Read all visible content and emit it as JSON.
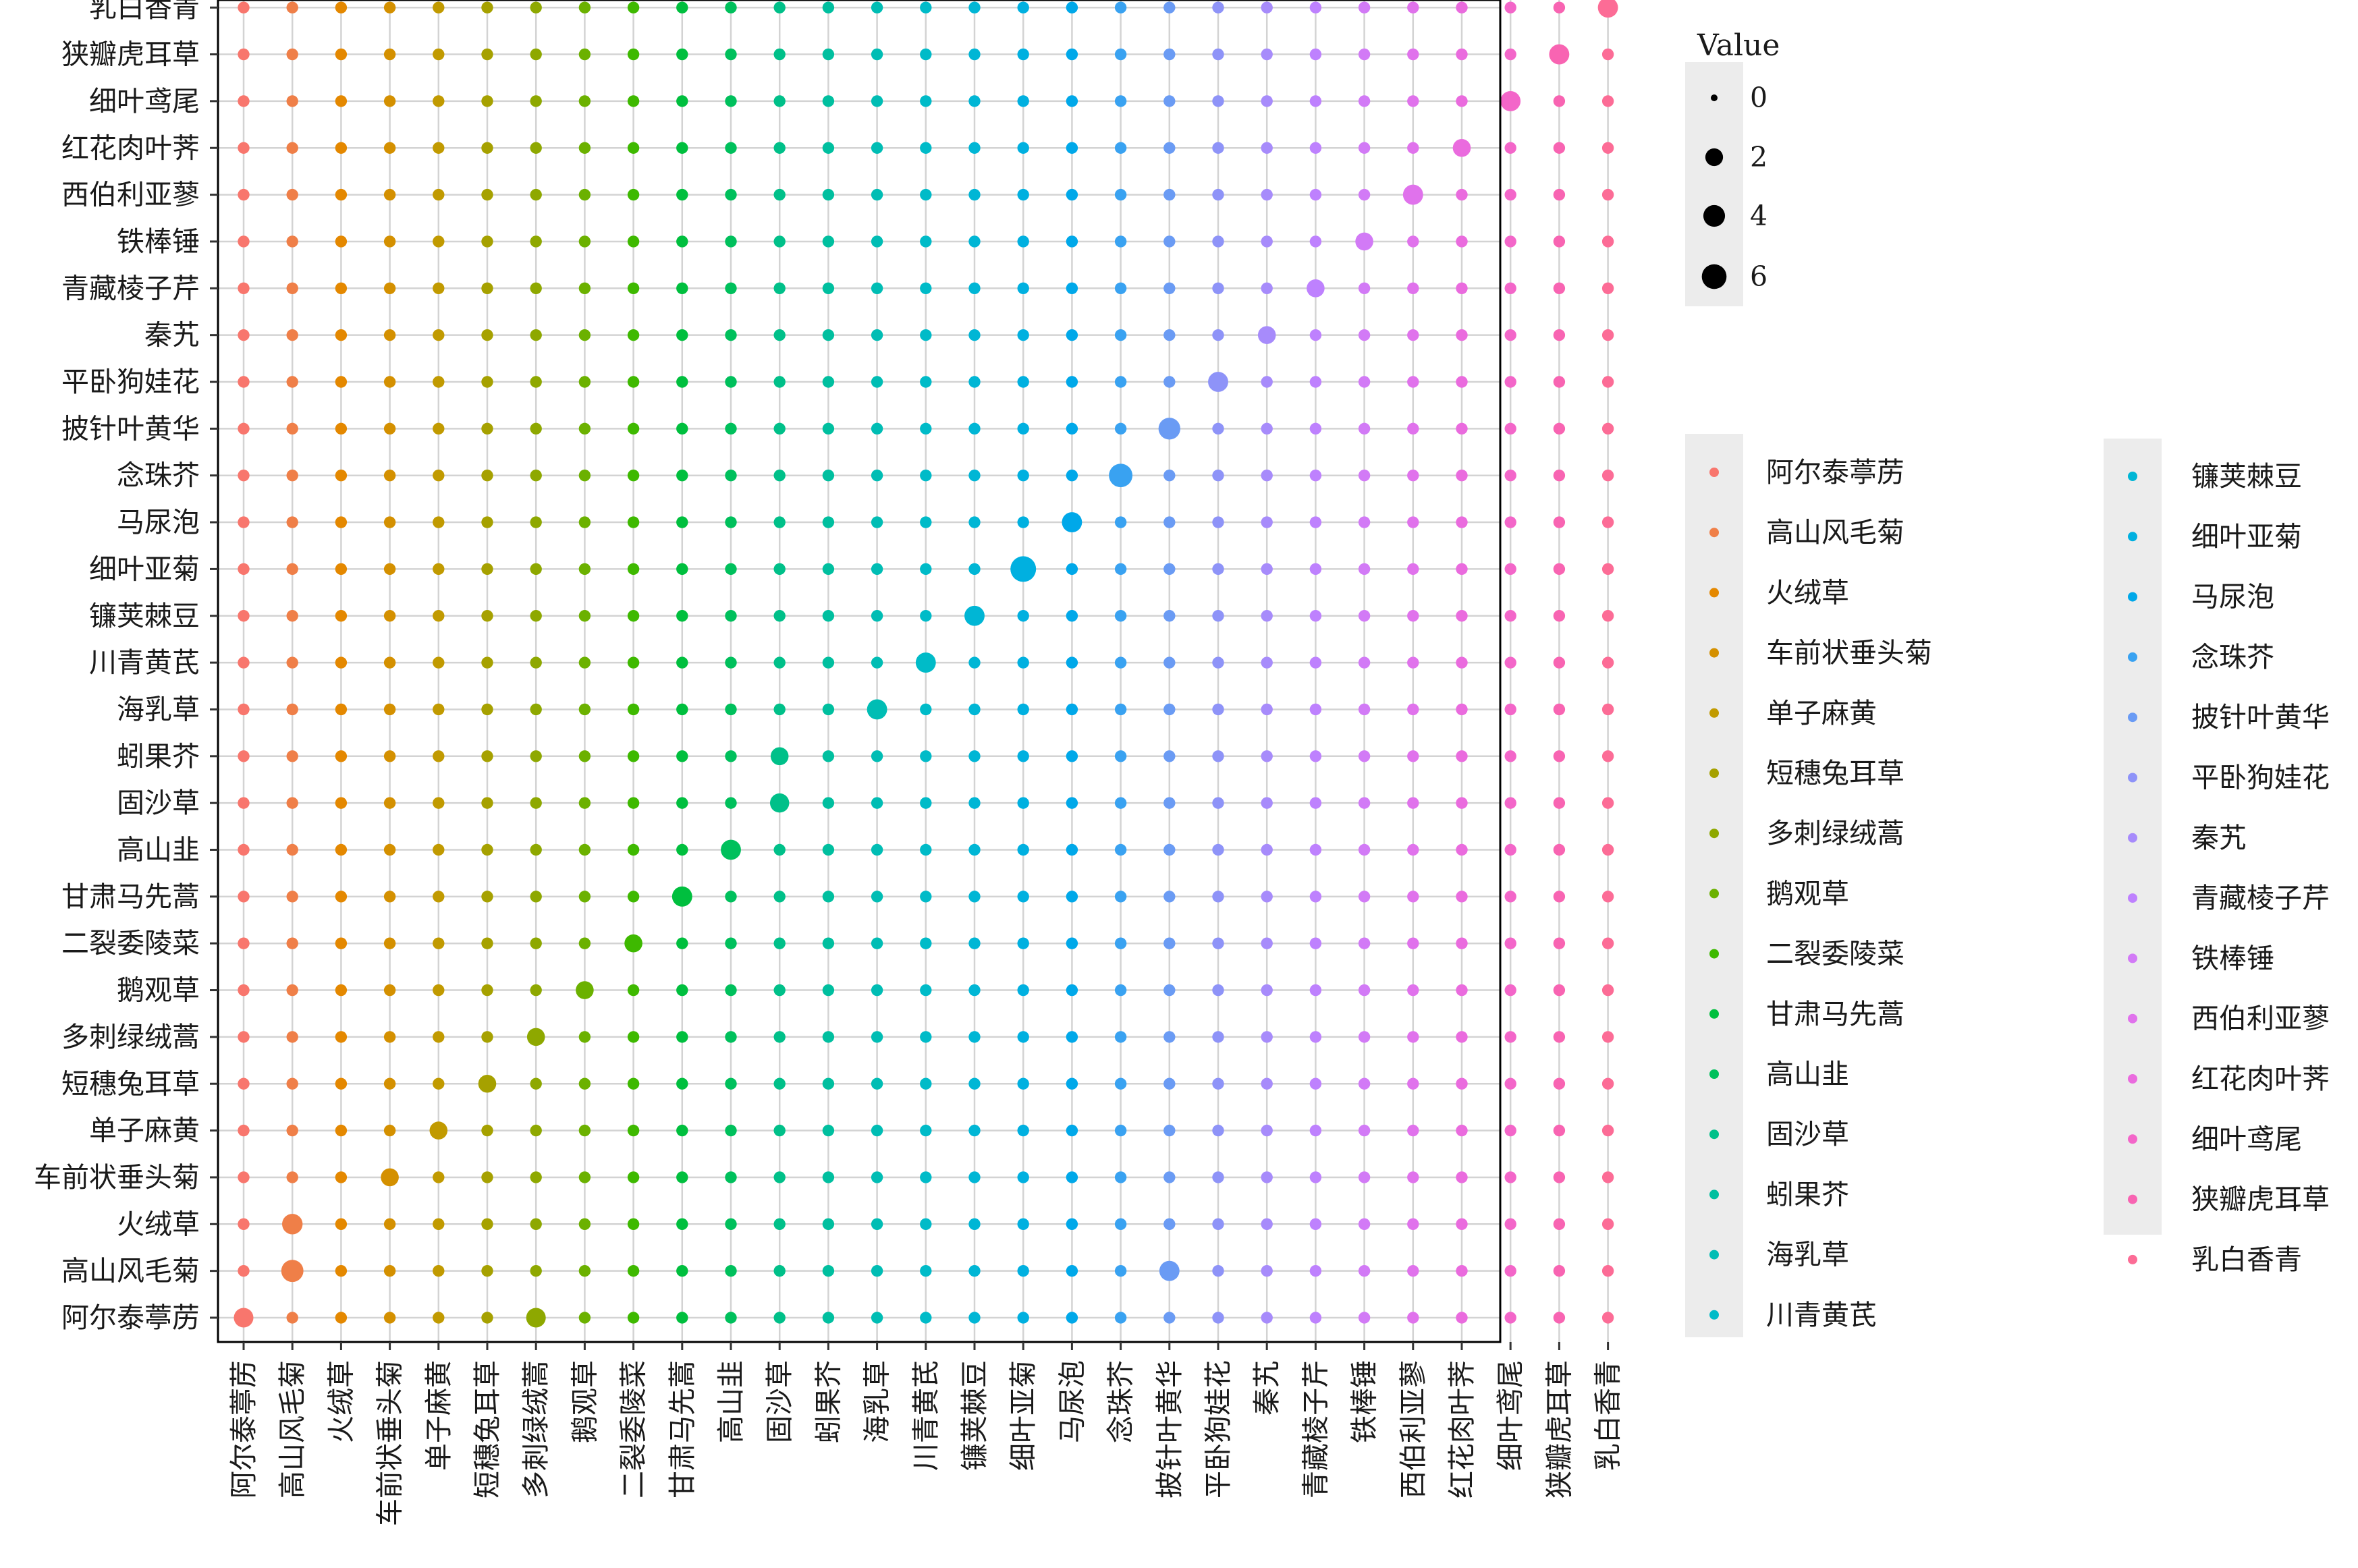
{
  "chart_data": {
    "type": "scatter",
    "subtype": "bubble-matrix",
    "categories": [
      "阿尔泰葶苈",
      "高山风毛菊",
      "火绒草",
      "车前状垂头菊",
      "单子麻黄",
      "短穗兔耳草",
      "多刺绿绒蒿",
      "鹅观草",
      "二裂委陵菜",
      "甘肃马先蒿",
      "高山韭",
      "固沙草",
      "蚓果芥",
      "海乳草",
      "川青黄芪",
      "镰荚棘豆",
      "细叶亚菊",
      "马尿泡",
      "念珠芥",
      "披针叶黄华",
      "平卧狗娃花",
      "秦艽",
      "青藏棱子芹",
      "铁棒锤",
      "西伯利亚蓼",
      "红花肉叶荠",
      "细叶鸢尾",
      "狭瓣虎耳草",
      "乳白香青"
    ],
    "colors": [
      "#F8766D",
      "#EF7F48",
      "#E48800",
      "#D49000",
      "#C19A00",
      "#A6A100",
      "#8EA800",
      "#6BB100",
      "#3EB900",
      "#00BF3E",
      "#00C05C",
      "#00C089",
      "#00BF9F",
      "#00BDB4",
      "#00BBC8",
      "#00B6D5",
      "#00B0E0",
      "#00A8E9",
      "#39A2F1",
      "#6A9BF4",
      "#8E93F8",
      "#A78BFB",
      "#BE81FE",
      "#D27AF6",
      "#E072EC",
      "#EA6BDE",
      "#F366C9",
      "#F864B2",
      "#FC6C96"
    ],
    "off_diagonal_value": 0.3,
    "points": [
      {
        "x": "阿尔泰葶苈",
        "y": "阿尔泰葶苈",
        "value": 3
      },
      {
        "x": "高山风毛菊",
        "y": "高山风毛菊",
        "value": 4.5
      },
      {
        "x": "高山风毛菊",
        "y": "火绒草",
        "value": 3.5
      },
      {
        "x": "车前状垂头菊",
        "y": "车前状垂头菊",
        "value": 2.2
      },
      {
        "x": "单子麻黄",
        "y": "单子麻黄",
        "value": 2.2
      },
      {
        "x": "短穗兔耳草",
        "y": "短穗兔耳草",
        "value": 2.2
      },
      {
        "x": "多刺绿绒蒿",
        "y": "多刺绿绒蒿",
        "value": 2.2
      },
      {
        "x": "多刺绿绒蒿",
        "y": "阿尔泰葶苈",
        "value": 3
      },
      {
        "x": "鹅观草",
        "y": "鹅观草",
        "value": 2.2
      },
      {
        "x": "二裂委陵菜",
        "y": "二裂委陵菜",
        "value": 2.2
      },
      {
        "x": "甘肃马先蒿",
        "y": "甘肃马先蒿",
        "value": 3.3
      },
      {
        "x": "高山韭",
        "y": "高山韭",
        "value": 3.3
      },
      {
        "x": "固沙草",
        "y": "固沙草",
        "value": 2.8
      },
      {
        "x": "固沙草",
        "y": "蚓果芥",
        "value": 2.2
      },
      {
        "x": "海乳草",
        "y": "海乳草",
        "value": 3.3
      },
      {
        "x": "川青黄芪",
        "y": "川青黄芪",
        "value": 3.3
      },
      {
        "x": "镰荚棘豆",
        "y": "镰荚棘豆",
        "value": 3.3
      },
      {
        "x": "细叶亚菊",
        "y": "细叶亚菊",
        "value": 7
      },
      {
        "x": "马尿泡",
        "y": "马尿泡",
        "value": 3.3
      },
      {
        "x": "念珠芥",
        "y": "念珠芥",
        "value": 5.4
      },
      {
        "x": "披针叶黄华",
        "y": "披针叶黄华",
        "value": 4.3
      },
      {
        "x": "披针叶黄华",
        "y": "高山风毛菊",
        "value": 3.3
      },
      {
        "x": "平卧狗娃花",
        "y": "平卧狗娃花",
        "value": 3.3
      },
      {
        "x": "秦艽",
        "y": "秦艽",
        "value": 2.2
      },
      {
        "x": "青藏棱子芹",
        "y": "青藏棱子芹",
        "value": 2.2
      },
      {
        "x": "铁棒锤",
        "y": "铁棒锤",
        "value": 2.2
      },
      {
        "x": "西伯利亚蓼",
        "y": "西伯利亚蓼",
        "value": 3.3
      },
      {
        "x": "红花肉叶荠",
        "y": "红花肉叶荠",
        "value": 2.2
      },
      {
        "x": "细叶鸢尾",
        "y": "细叶鸢尾",
        "value": 3.3
      },
      {
        "x": "狭瓣虎耳草",
        "y": "狭瓣虎耳草",
        "value": 3.3
      },
      {
        "x": "乳白香青",
        "y": "乳白香青",
        "value": 3.3
      }
    ],
    "size_legend": {
      "title": "Value",
      "breaks": [
        0,
        2,
        4,
        6
      ],
      "position": "right"
    },
    "color_legend": {
      "columns": 2,
      "position": "right"
    },
    "grid": true,
    "xlabel": "",
    "ylabel": ""
  }
}
